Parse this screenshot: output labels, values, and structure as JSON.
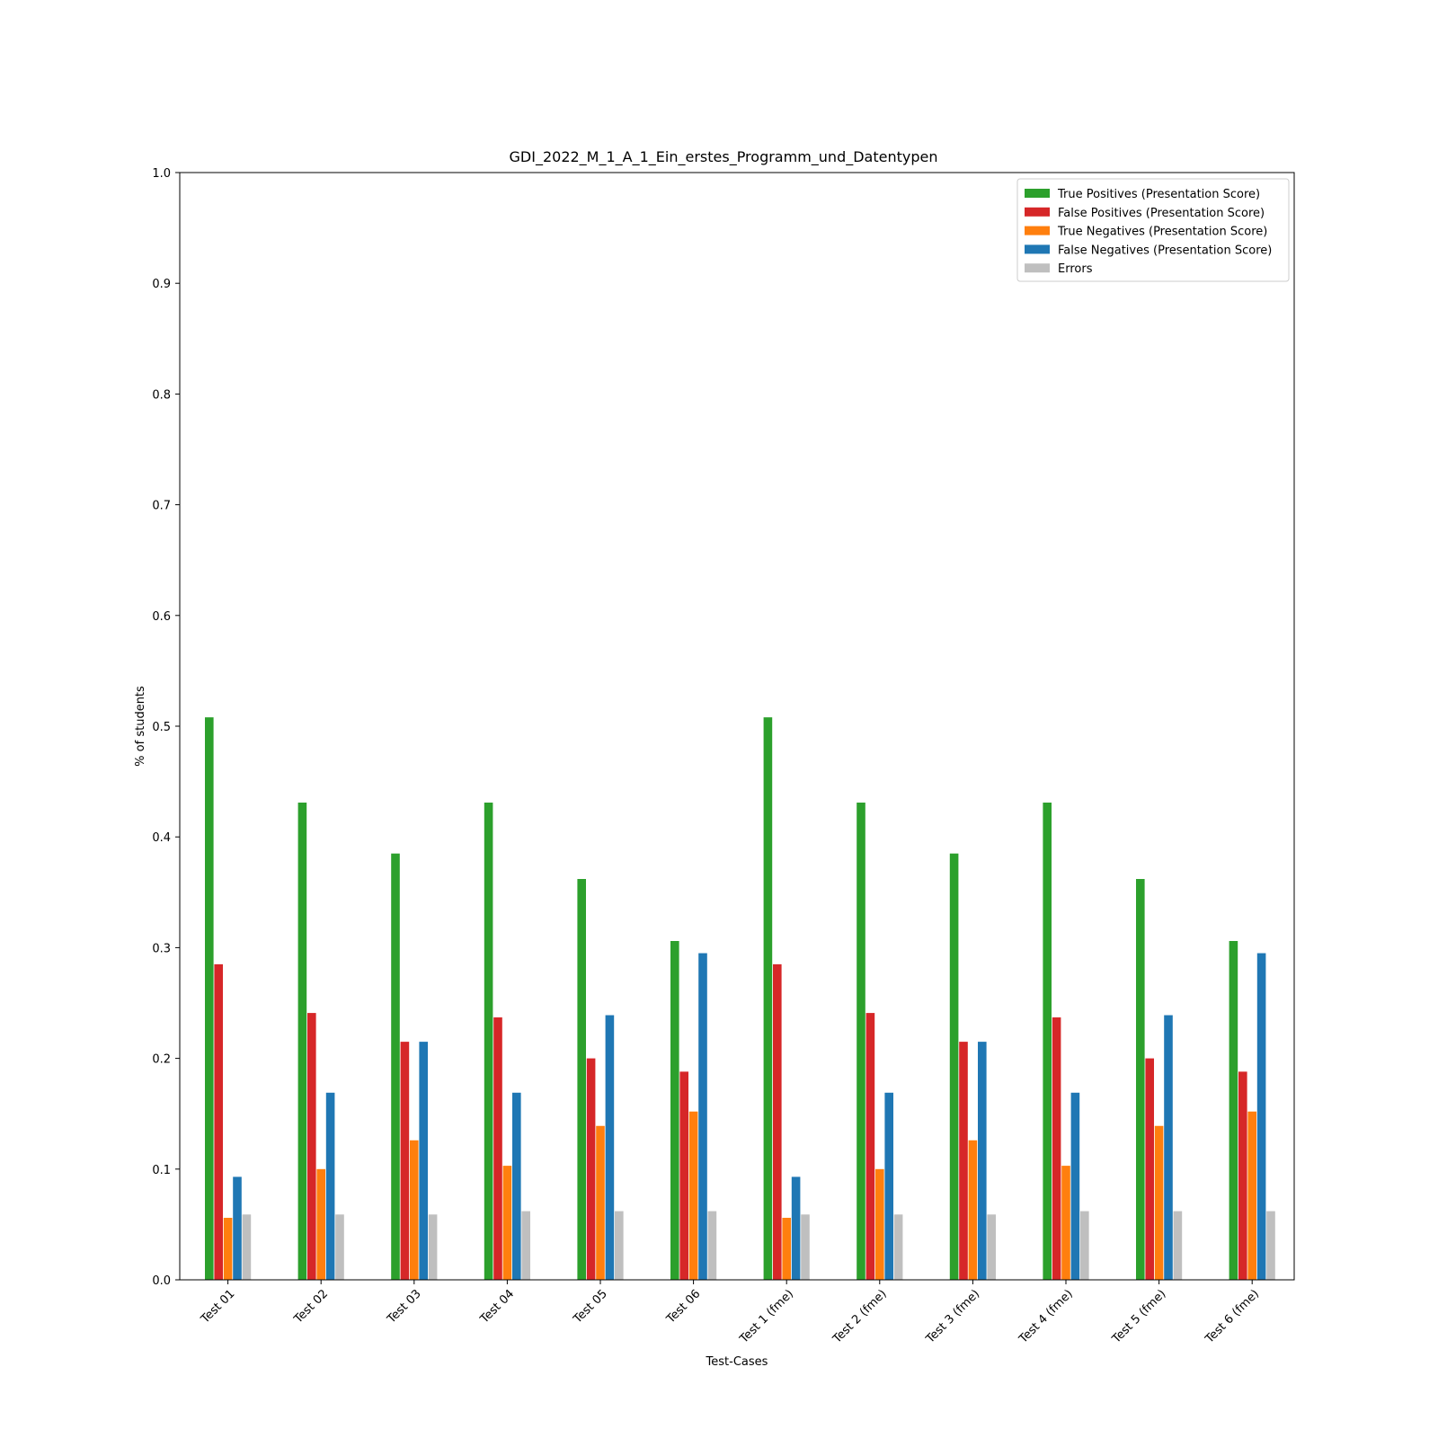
{
  "chart_data": {
    "type": "bar",
    "title": "GDI_2022_M_1_A_1_Ein_erstes_Programm_und_Datentypen",
    "xlabel": "Test-Cases",
    "ylabel": "% of students",
    "ylim": [
      0,
      1.0
    ],
    "yticks": [
      "0.0",
      "0.1",
      "0.2",
      "0.3",
      "0.4",
      "0.5",
      "0.6",
      "0.7",
      "0.8",
      "0.9",
      "1.0"
    ],
    "legend_position": "top-right",
    "grid": false,
    "categories": [
      "Test 01",
      "Test 02",
      "Test 03",
      "Test 04",
      "Test 05",
      "Test 06",
      "Test 1 (fme)",
      "Test 2 (fme)",
      "Test 3 (fme)",
      "Test 4 (fme)",
      "Test 5 (fme)",
      "Test 6 (fme)"
    ],
    "series": [
      {
        "name": "True Positives (Presentation Score)",
        "color": "#2ca02c",
        "values": [
          0.508,
          0.431,
          0.385,
          0.431,
          0.362,
          0.306,
          0.508,
          0.431,
          0.385,
          0.431,
          0.362,
          0.306
        ]
      },
      {
        "name": "False Positives (Presentation Score)",
        "color": "#d62728",
        "values": [
          0.285,
          0.241,
          0.215,
          0.237,
          0.2,
          0.188,
          0.285,
          0.241,
          0.215,
          0.237,
          0.2,
          0.188
        ]
      },
      {
        "name": "True Negatives (Presentation Score)",
        "color": "#ff7f0e",
        "values": [
          0.056,
          0.1,
          0.126,
          0.103,
          0.139,
          0.152,
          0.056,
          0.1,
          0.126,
          0.103,
          0.139,
          0.152
        ]
      },
      {
        "name": "False Negatives (Presentation Score)",
        "color": "#1f77b4",
        "values": [
          0.093,
          0.169,
          0.215,
          0.169,
          0.239,
          0.295,
          0.093,
          0.169,
          0.215,
          0.169,
          0.239,
          0.295
        ]
      },
      {
        "name": "Errors",
        "color": "#bfbfbf",
        "values": [
          0.059,
          0.059,
          0.059,
          0.062,
          0.062,
          0.062,
          0.059,
          0.059,
          0.059,
          0.062,
          0.062,
          0.062
        ]
      }
    ]
  }
}
